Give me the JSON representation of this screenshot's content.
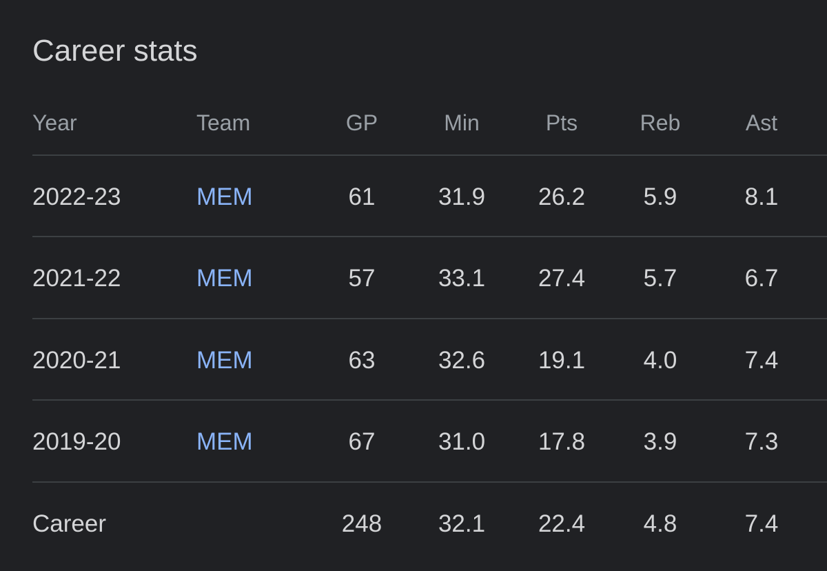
{
  "title": "Career stats",
  "table": {
    "headers": [
      "Year",
      "Team",
      "GP",
      "Min",
      "Pts",
      "Reb",
      "Ast"
    ],
    "rows": [
      {
        "year": "2022-23",
        "team": "MEM",
        "stats": [
          "61",
          "31.9",
          "26.2",
          "5.9",
          "8.1"
        ]
      },
      {
        "year": "2021-22",
        "team": "MEM",
        "stats": [
          "57",
          "33.1",
          "27.4",
          "5.7",
          "6.7"
        ]
      },
      {
        "year": "2020-21",
        "team": "MEM",
        "stats": [
          "63",
          "32.6",
          "19.1",
          "4.0",
          "7.4"
        ]
      },
      {
        "year": "2019-20",
        "team": "MEM",
        "stats": [
          "67",
          "31.0",
          "17.8",
          "3.9",
          "7.3"
        ]
      }
    ],
    "total": {
      "label": "Career",
      "stats": [
        "248",
        "32.1",
        "22.4",
        "4.8",
        "7.4"
      ]
    }
  }
}
